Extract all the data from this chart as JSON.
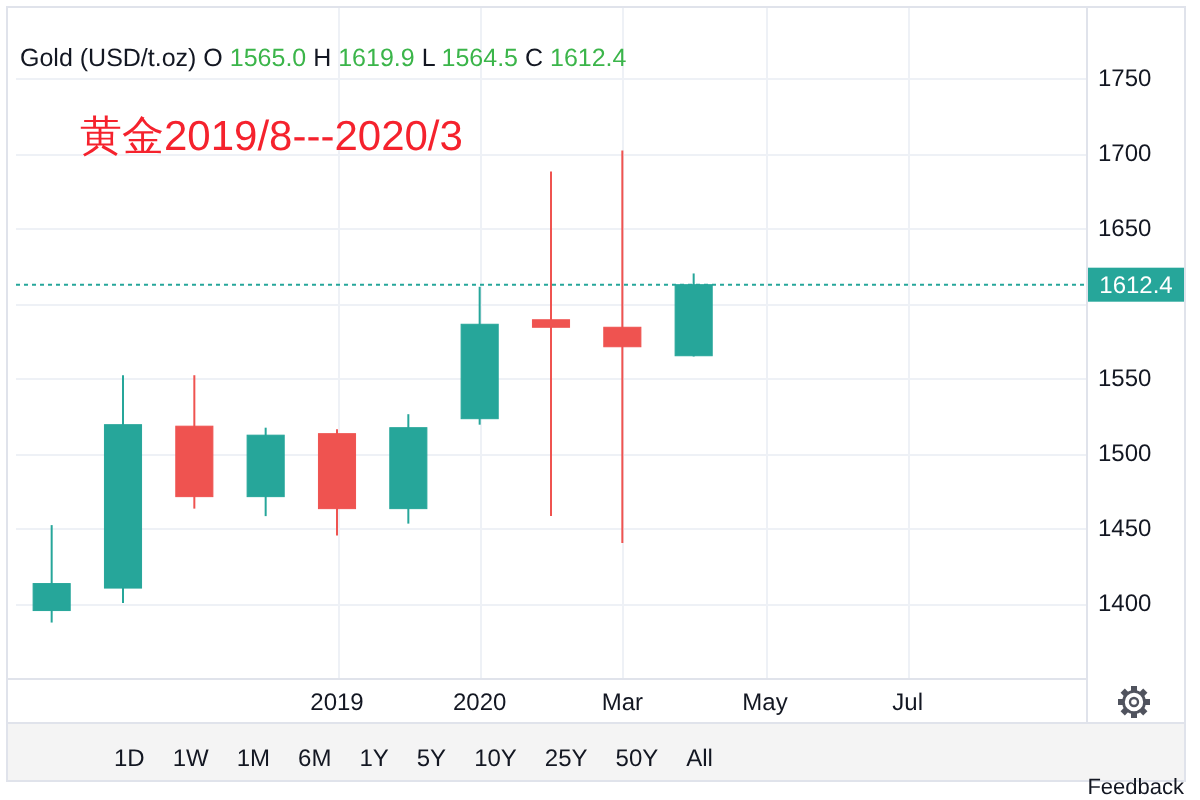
{
  "chart_data": {
    "type": "candlestick",
    "title": "黄金2019/8---2020/3",
    "subtitle": "Gold (USD/t.oz) O 1565.0 H 1619.9 L 1564.5 C 1612.4",
    "categories": [
      null,
      null,
      null,
      null,
      "2019",
      null,
      "2020",
      null,
      "Mar",
      null,
      "May",
      null,
      "Jul",
      null,
      null
    ],
    "ohlc": [
      [
        1395,
        1452,
        1387,
        1413
      ],
      [
        1410,
        1552,
        1400,
        1519
      ],
      [
        1518,
        1552,
        1463,
        1471
      ],
      [
        1471,
        1517,
        1458,
        1512
      ],
      [
        1513,
        1516,
        1445,
        1463
      ],
      [
        1463,
        1526,
        1453,
        1517
      ],
      [
        1523,
        1611,
        1519,
        1586
      ],
      [
        1589,
        1688,
        1458,
        1584
      ],
      [
        1584,
        1702,
        1440,
        1571
      ],
      [
        1565.0,
        1619.9,
        1564.5,
        1612.4
      ],
      null,
      null,
      null,
      null,
      null
    ],
    "colors": [
      "#26a69a",
      "#26a69a",
      "#ef5350",
      "#26a69a",
      "#ef5350",
      "#26a69a",
      "#26a69a",
      "#ef5350",
      "#ef5350",
      "#26a69a",
      null,
      null,
      null,
      null,
      null
    ],
    "ylim": [
      1350,
      1797
    ],
    "yticks": [
      1400,
      1450,
      1500,
      1550,
      {
        "value": 1600,
        "label": null
      },
      1650,
      1700,
      1750
    ],
    "grid": true,
    "ref_lines": [
      {
        "axis": "y",
        "value": 1612.4,
        "label": "1612.4",
        "color": "#26a69a",
        "line_style": "dotted"
      }
    ],
    "annotations": [
      "1D",
      "1W",
      "1M",
      "6M",
      "1Y",
      "5Y",
      "10Y",
      "25Y",
      "50Y",
      "All",
      "Feedback"
    ]
  }
}
